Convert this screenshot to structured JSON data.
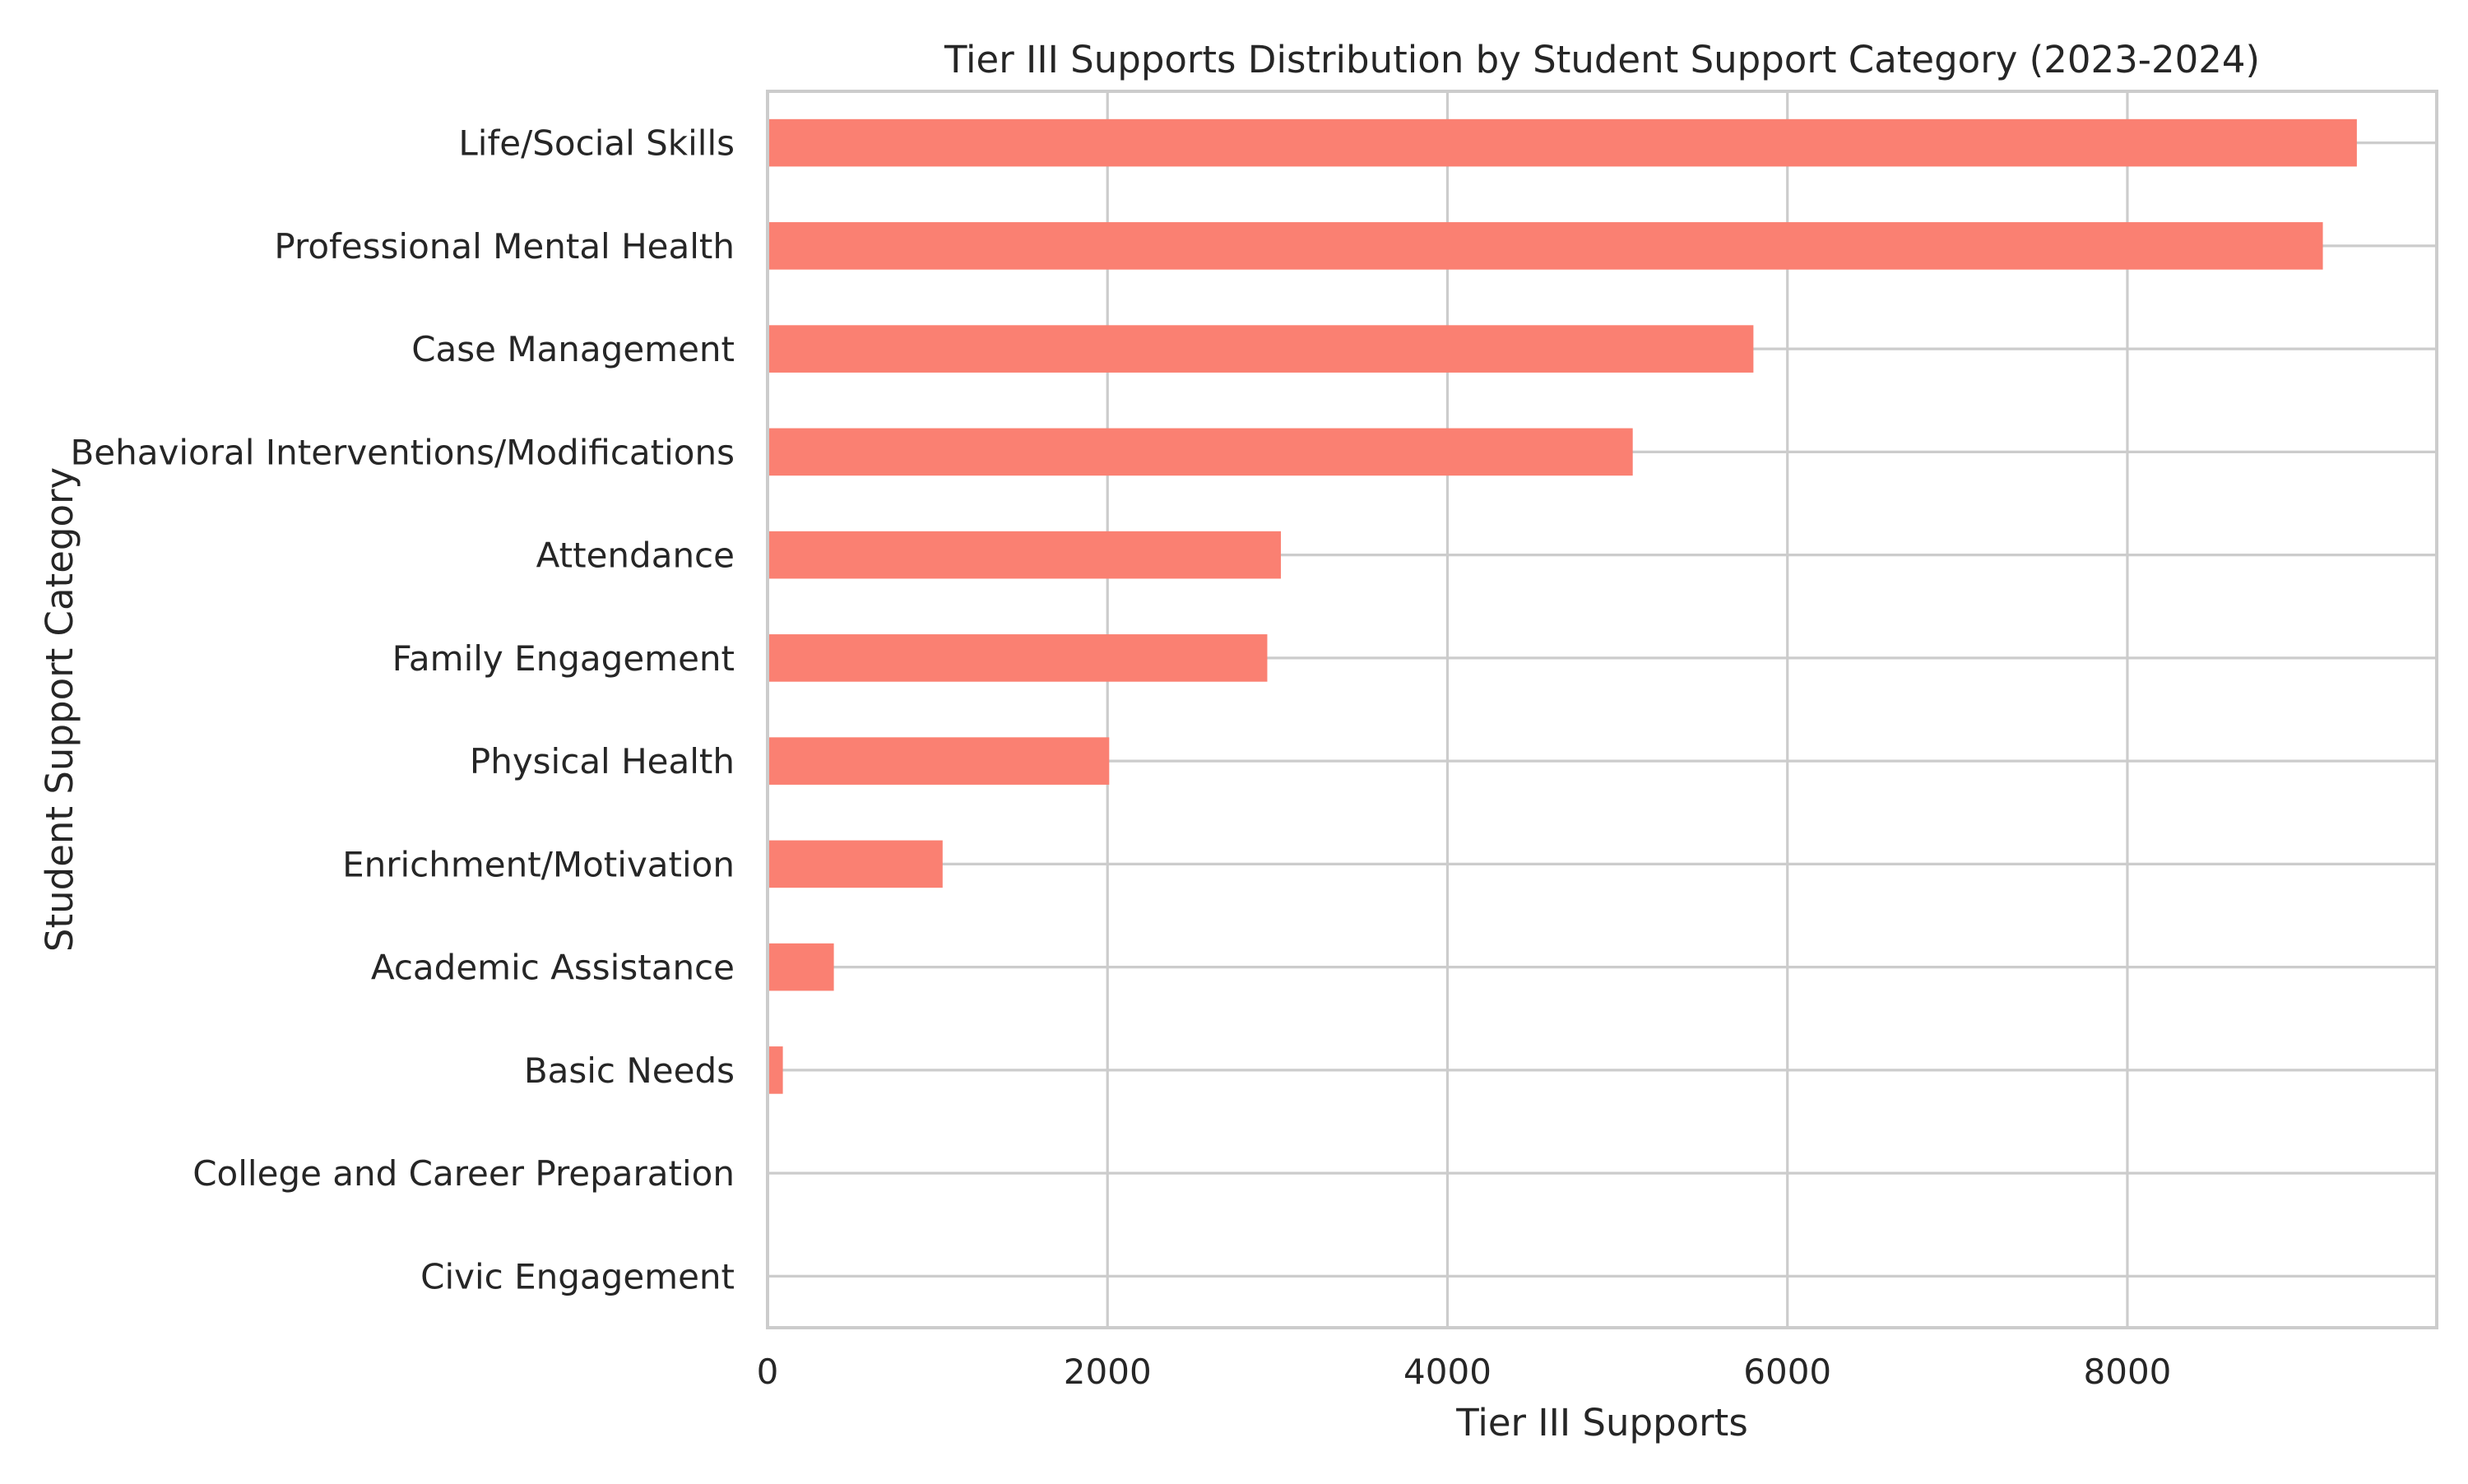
{
  "chart_data": {
    "type": "bar",
    "orientation": "horizontal",
    "title": "Tier III Supports Distribution by Student Support Category (2023-2024)",
    "xlabel": "Tier III Supports",
    "ylabel": "Student Support Category",
    "categories": [
      "Life/Social Skills",
      "Professional Mental Health",
      "Case Management",
      "Behavioral Interventions/Modifications",
      "Attendance",
      "Family Engagement",
      "Physical Health",
      "Enrichment/Motivation",
      "Academic Assistance",
      "Basic Needs",
      "College and Career Preparation",
      "Civic Engagement"
    ],
    "values": [
      9350,
      9150,
      5800,
      5090,
      3020,
      2940,
      2010,
      1030,
      390,
      90,
      0,
      0
    ],
    "xlim": [
      0,
      9820
    ],
    "xticks": [
      0,
      2000,
      4000,
      6000,
      8000
    ],
    "xtick_labels": [
      "0",
      "2000",
      "4000",
      "6000",
      "8000"
    ],
    "grid": true,
    "legend": "none",
    "bar_color": "#fa8072",
    "grid_color": "#cccccc",
    "spine_color": "#cccccc",
    "text_color": "#262626"
  }
}
